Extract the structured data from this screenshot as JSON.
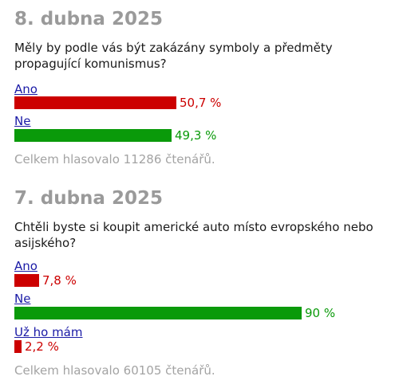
{
  "colors": {
    "red": "#cc0000",
    "green": "#0a9a0a",
    "date_gray": "#9a9a9a",
    "link_blue": "#1a1aa6"
  },
  "chart_data": [
    {
      "type": "bar",
      "title": "8. dubna 2025",
      "question": "Měly by podle vás být zakázány symboly a předměty propagující komunismus?",
      "categories": [
        "Ano",
        "Ne"
      ],
      "values": [
        50.7,
        49.3
      ],
      "value_labels": [
        "50,7 %",
        "49,3 %"
      ],
      "bar_colors": [
        "#cc0000",
        "#0a9a0a"
      ],
      "total": "Celkem hlasovalo 11286 čtenářů."
    },
    {
      "type": "bar",
      "title": "7. dubna 2025",
      "question": "Chtěli byste si koupit americké auto místo evropského nebo asijského?",
      "categories": [
        "Ano",
        "Ne",
        "Už ho mám"
      ],
      "values": [
        7.8,
        90,
        2.2
      ],
      "value_labels": [
        "7,8 %",
        "90 %",
        "2,2 %"
      ],
      "bar_colors": [
        "#cc0000",
        "#0a9a0a",
        "#cc0000"
      ],
      "total": "Celkem hlasovalo 60105 čtenářů."
    }
  ]
}
